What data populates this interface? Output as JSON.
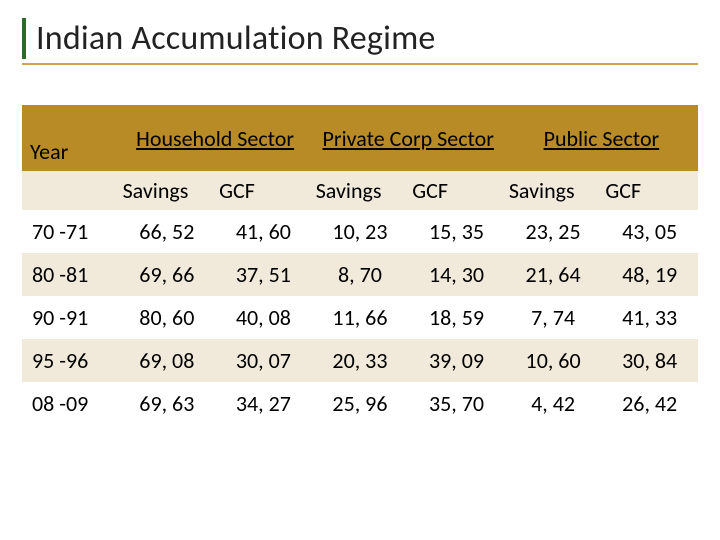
{
  "title": "Indian Accumulation Regime",
  "colors": {
    "title_border": "#2a6b2a",
    "title_underline": "#c9a74a",
    "header_bg": "#b88b26",
    "row_alt_bg": "#f1e9d9",
    "row_bg": "#ffffff",
    "text": "#000000"
  },
  "typography": {
    "title_fontsize": 34,
    "cell_fontsize": 22,
    "font_family": "Calibri"
  },
  "table": {
    "type": "table",
    "year_label": "Year",
    "groups": [
      {
        "label": "Household Sector",
        "sub": [
          "Savings",
          "GCF"
        ]
      },
      {
        "label": "Private Corp Sector",
        "sub": [
          "Savings",
          "GCF"
        ]
      },
      {
        "label": "Public Sector",
        "sub": [
          "Savings",
          "GCF"
        ]
      }
    ],
    "rows": [
      {
        "year": "70 -71",
        "cells": [
          "66, 52",
          "41, 60",
          "10, 23",
          "15, 35",
          "23, 25",
          "43, 05"
        ]
      },
      {
        "year": "80 -81",
        "cells": [
          "69, 66",
          "37, 51",
          "8, 70",
          "14, 30",
          "21, 64",
          "48, 19"
        ]
      },
      {
        "year": "90 -91",
        "cells": [
          "80, 60",
          "40, 08",
          "11, 66",
          "18, 59",
          "7, 74",
          "41, 33"
        ]
      },
      {
        "year": "95 -96",
        "cells": [
          "69, 08",
          "30, 07",
          "20, 33",
          "39, 09",
          "10, 60",
          "30, 84"
        ]
      },
      {
        "year": "08 -09",
        "cells": [
          "69, 63",
          "34, 27",
          "25, 96",
          "35, 70",
          "4, 42",
          "26, 42"
        ]
      }
    ]
  }
}
